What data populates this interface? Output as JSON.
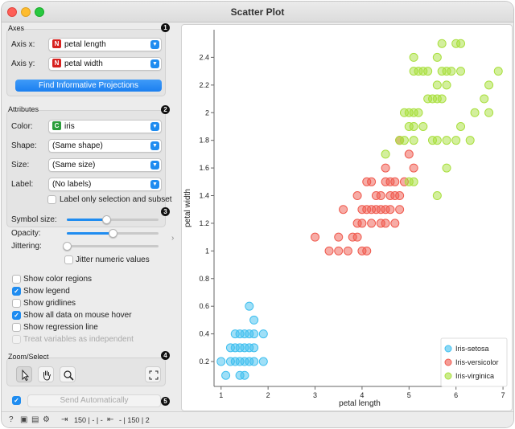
{
  "window": {
    "title": "Scatter Plot"
  },
  "axes": {
    "title": "Axes",
    "x_label": "Axis x:",
    "x_value": "petal length",
    "x_type": "N",
    "y_label": "Axis y:",
    "y_value": "petal width",
    "y_type": "N",
    "find_button": "Find Informative Projections"
  },
  "attributes": {
    "title": "Attributes",
    "color_label": "Color:",
    "color_value": "iris",
    "color_type": "C",
    "shape_label": "Shape:",
    "shape_value": "(Same shape)",
    "size_label": "Size:",
    "size_value": "(Same size)",
    "label_label": "Label:",
    "label_value": "(No labels)",
    "label_only_selection": "Label only selection and subset"
  },
  "visual": {
    "symbol_size_label": "Symbol size:",
    "symbol_size": 0.43,
    "opacity_label": "Opacity:",
    "opacity": 0.5,
    "jittering_label": "Jittering:",
    "jittering": 0.0,
    "jitter_numeric": "Jitter numeric values"
  },
  "options": [
    {
      "label": "Show color regions",
      "checked": false,
      "disabled": false
    },
    {
      "label": "Show legend",
      "checked": true,
      "disabled": false
    },
    {
      "label": "Show gridlines",
      "checked": false,
      "disabled": false
    },
    {
      "label": "Show all data on mouse hover",
      "checked": true,
      "disabled": false
    },
    {
      "label": "Show regression line",
      "checked": false,
      "disabled": false
    },
    {
      "label": "Treat variables as independent",
      "checked": false,
      "disabled": true
    }
  ],
  "zoom": {
    "title": "Zoom/Select"
  },
  "send": {
    "label": "Send Automatically",
    "checked": true
  },
  "badges": [
    "1",
    "2",
    "3",
    "4",
    "5"
  ],
  "status": {
    "input_count": "150 | - | -",
    "output_count": "- | 150 | 2"
  },
  "colors": {
    "setosa": "#3fbfef",
    "versicolor": "#ef5a4e",
    "virginica": "#a8df3c",
    "accent": "#1f8cf0"
  },
  "chart_data": {
    "type": "scatter",
    "xlabel": "petal length",
    "ylabel": "petal width",
    "xlim": [
      0.85,
      7.05
    ],
    "ylim": [
      0.02,
      2.6
    ],
    "xticks": [
      1,
      2,
      3,
      4,
      5,
      6,
      7
    ],
    "yticks": [
      0.2,
      0.4,
      0.6,
      0.8,
      1,
      1.2,
      1.4,
      1.6,
      1.8,
      2,
      2.2,
      2.4
    ],
    "grid": false,
    "legend_position": "bottom-right",
    "series": [
      {
        "name": "Iris-setosa",
        "color": "#3fbfef",
        "points": [
          [
            1.0,
            0.2
          ],
          [
            1.1,
            0.1
          ],
          [
            1.2,
            0.2
          ],
          [
            1.3,
            0.2
          ],
          [
            1.3,
            0.3
          ],
          [
            1.3,
            0.4
          ],
          [
            1.4,
            0.1
          ],
          [
            1.4,
            0.2
          ],
          [
            1.4,
            0.3
          ],
          [
            1.5,
            0.1
          ],
          [
            1.5,
            0.2
          ],
          [
            1.5,
            0.3
          ],
          [
            1.5,
            0.4
          ],
          [
            1.6,
            0.2
          ],
          [
            1.6,
            0.4
          ],
          [
            1.6,
            0.6
          ],
          [
            1.7,
            0.2
          ],
          [
            1.7,
            0.3
          ],
          [
            1.7,
            0.4
          ],
          [
            1.7,
            0.5
          ],
          [
            1.9,
            0.2
          ],
          [
            1.9,
            0.4
          ],
          [
            1.6,
            0.3
          ],
          [
            1.4,
            0.4
          ],
          [
            1.2,
            0.3
          ]
        ]
      },
      {
        "name": "Iris-versicolor",
        "color": "#ef5a4e",
        "points": [
          [
            3.0,
            1.1
          ],
          [
            3.3,
            1.0
          ],
          [
            3.5,
            1.0
          ],
          [
            3.6,
            1.3
          ],
          [
            3.7,
            1.0
          ],
          [
            3.8,
            1.1
          ],
          [
            3.9,
            1.1
          ],
          [
            3.9,
            1.2
          ],
          [
            3.9,
            1.4
          ],
          [
            4.0,
            1.0
          ],
          [
            4.0,
            1.2
          ],
          [
            4.0,
            1.3
          ],
          [
            4.1,
            1.0
          ],
          [
            4.1,
            1.3
          ],
          [
            4.2,
            1.2
          ],
          [
            4.2,
            1.3
          ],
          [
            4.2,
            1.5
          ],
          [
            4.3,
            1.3
          ],
          [
            4.4,
            1.2
          ],
          [
            4.4,
            1.3
          ],
          [
            4.4,
            1.4
          ],
          [
            4.5,
            1.3
          ],
          [
            4.5,
            1.5
          ],
          [
            4.5,
            1.6
          ],
          [
            4.6,
            1.3
          ],
          [
            4.6,
            1.4
          ],
          [
            4.6,
            1.5
          ],
          [
            4.7,
            1.2
          ],
          [
            4.7,
            1.4
          ],
          [
            4.7,
            1.5
          ],
          [
            4.8,
            1.4
          ],
          [
            4.8,
            1.8
          ],
          [
            4.9,
            1.5
          ],
          [
            5.0,
            1.7
          ],
          [
            5.1,
            1.6
          ],
          [
            4.1,
            1.5
          ],
          [
            4.3,
            1.4
          ],
          [
            3.5,
            1.1
          ],
          [
            4.5,
            1.2
          ],
          [
            4.8,
            1.3
          ]
        ]
      },
      {
        "name": "Iris-virginica",
        "color": "#a8df3c",
        "points": [
          [
            4.5,
            1.7
          ],
          [
            4.8,
            1.8
          ],
          [
            4.9,
            1.8
          ],
          [
            4.9,
            2.0
          ],
          [
            5.0,
            1.5
          ],
          [
            5.0,
            2.0
          ],
          [
            5.0,
            1.9
          ],
          [
            5.1,
            1.5
          ],
          [
            5.1,
            1.8
          ],
          [
            5.1,
            1.9
          ],
          [
            5.1,
            2.0
          ],
          [
            5.1,
            2.3
          ],
          [
            5.1,
            2.4
          ],
          [
            5.2,
            2.0
          ],
          [
            5.2,
            2.3
          ],
          [
            5.3,
            1.9
          ],
          [
            5.3,
            2.3
          ],
          [
            5.4,
            2.1
          ],
          [
            5.4,
            2.3
          ],
          [
            5.5,
            1.8
          ],
          [
            5.5,
            2.1
          ],
          [
            5.6,
            1.4
          ],
          [
            5.6,
            1.8
          ],
          [
            5.6,
            2.1
          ],
          [
            5.6,
            2.2
          ],
          [
            5.6,
            2.4
          ],
          [
            5.7,
            2.1
          ],
          [
            5.7,
            2.3
          ],
          [
            5.7,
            2.5
          ],
          [
            5.8,
            1.6
          ],
          [
            5.8,
            1.8
          ],
          [
            5.8,
            2.2
          ],
          [
            5.8,
            2.3
          ],
          [
            5.9,
            2.3
          ],
          [
            6.0,
            1.8
          ],
          [
            6.0,
            2.5
          ],
          [
            6.1,
            1.9
          ],
          [
            6.1,
            2.3
          ],
          [
            6.1,
            2.5
          ],
          [
            6.3,
            1.8
          ],
          [
            6.4,
            2.0
          ],
          [
            6.6,
            2.1
          ],
          [
            6.7,
            2.0
          ],
          [
            6.7,
            2.2
          ],
          [
            6.9,
            2.3
          ]
        ]
      }
    ]
  }
}
